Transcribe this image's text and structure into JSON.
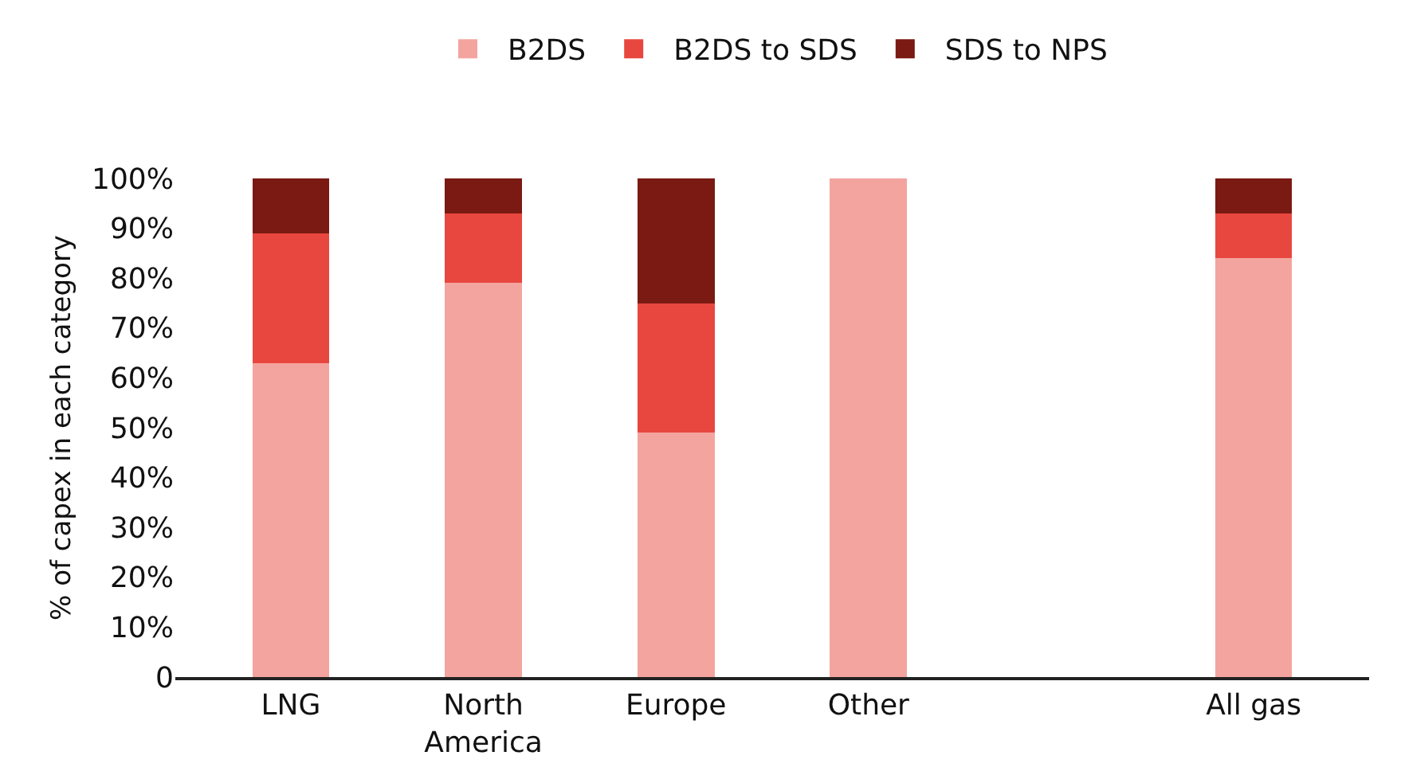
{
  "chart_data": {
    "type": "bar",
    "stacked": true,
    "ylabel": "% of capex in each category",
    "categories": [
      "LNG",
      "North America",
      "Europe",
      "Other",
      null,
      "All gas"
    ],
    "series": [
      {
        "name": "B2DS",
        "color": "#f4a49e",
        "values": [
          63,
          79,
          49,
          100,
          null,
          84
        ]
      },
      {
        "name": "B2DS to SDS",
        "color": "#e8473f",
        "values": [
          26,
          14,
          26,
          0,
          null,
          9
        ]
      },
      {
        "name": "SDS to NPS",
        "color": "#7a1a12",
        "values": [
          11,
          7,
          25,
          0,
          null,
          7
        ]
      }
    ],
    "ylim": [
      0,
      100
    ],
    "yticks": [
      {
        "value": 0,
        "label": "0"
      },
      {
        "value": 10,
        "label": "10%"
      },
      {
        "value": 20,
        "label": "20%"
      },
      {
        "value": 30,
        "label": "30%"
      },
      {
        "value": 40,
        "label": "40%"
      },
      {
        "value": 50,
        "label": "50%"
      },
      {
        "value": 60,
        "label": "60%"
      },
      {
        "value": 70,
        "label": "70%"
      },
      {
        "value": 80,
        "label": "80%"
      },
      {
        "value": 90,
        "label": "90%"
      },
      {
        "value": 100,
        "label": "100%"
      }
    ],
    "legend": "top"
  }
}
